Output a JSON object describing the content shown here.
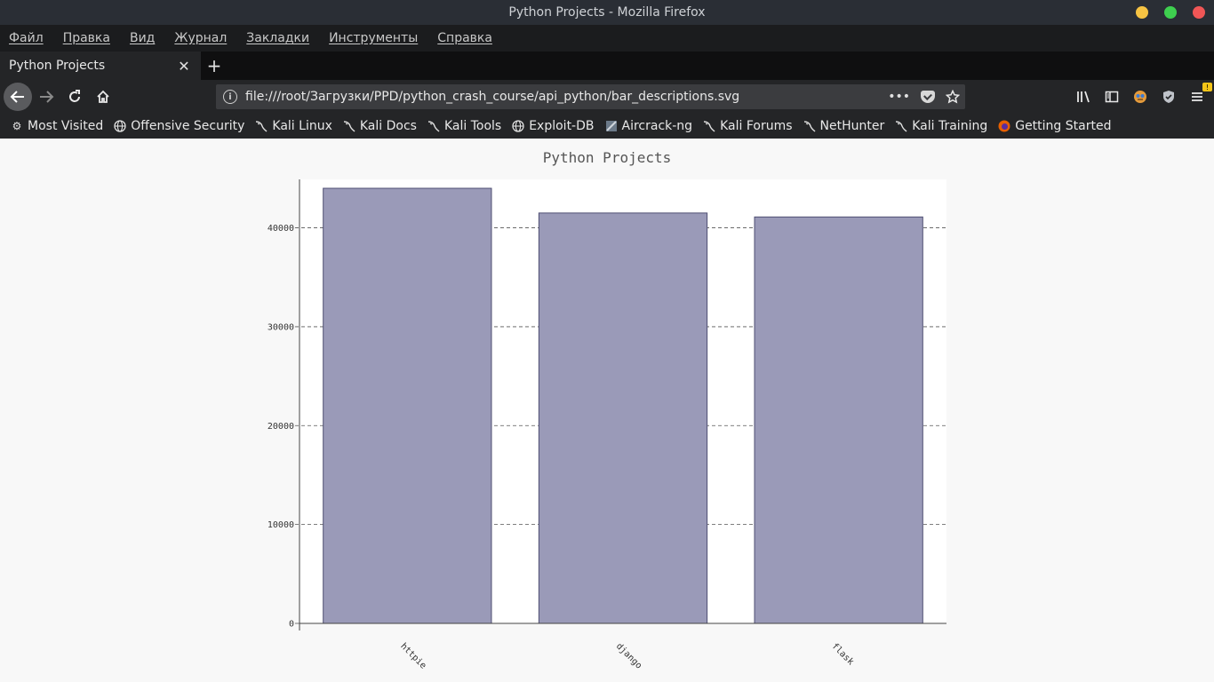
{
  "window": {
    "title": "Python Projects - Mozilla Firefox",
    "buttons": {
      "minimize_color": "#f6c343",
      "maximize_color": "#3ecf4f",
      "close_color": "#f05656"
    }
  },
  "menubar": {
    "items": [
      "Файл",
      "Правка",
      "Вид",
      "Журнал",
      "Закладки",
      "Инструменты",
      "Справка"
    ]
  },
  "tabs": [
    {
      "title": "Python Projects",
      "close_icon": "close-icon"
    }
  ],
  "navbar": {
    "url": "file:///root/Загрузки/PPD/python_crash_course/api_python/bar_descriptions.svg",
    "badge": "!"
  },
  "bookmarks": [
    {
      "label": "Most Visited",
      "icon": "gear-icon"
    },
    {
      "label": "Offensive Security",
      "icon": "globe-icon"
    },
    {
      "label": "Kali Linux",
      "icon": "kali-dragon-icon"
    },
    {
      "label": "Kali Docs",
      "icon": "kali-dragon-icon"
    },
    {
      "label": "Kali Tools",
      "icon": "kali-dragon-icon"
    },
    {
      "label": "Exploit-DB",
      "icon": "globe-icon"
    },
    {
      "label": "Aircrack-ng",
      "icon": "aircrack-icon"
    },
    {
      "label": "Kali Forums",
      "icon": "kali-dragon-icon"
    },
    {
      "label": "NetHunter",
      "icon": "kali-dragon-icon"
    },
    {
      "label": "Kali Training",
      "icon": "kali-dragon-icon"
    },
    {
      "label": "Getting Started",
      "icon": "firefox-icon"
    }
  ],
  "chart_data": {
    "type": "bar",
    "title": "Python Projects",
    "categories": [
      "httpie",
      "django",
      "flask"
    ],
    "values": [
      44000,
      41500,
      41100
    ],
    "ylim": [
      0,
      44900
    ],
    "yticks": [
      0,
      10000,
      20000,
      30000,
      40000
    ],
    "grid": "horizontal-dashed",
    "bar_color": "#9a9ab8",
    "bar_stroke": "#4e4e72"
  }
}
